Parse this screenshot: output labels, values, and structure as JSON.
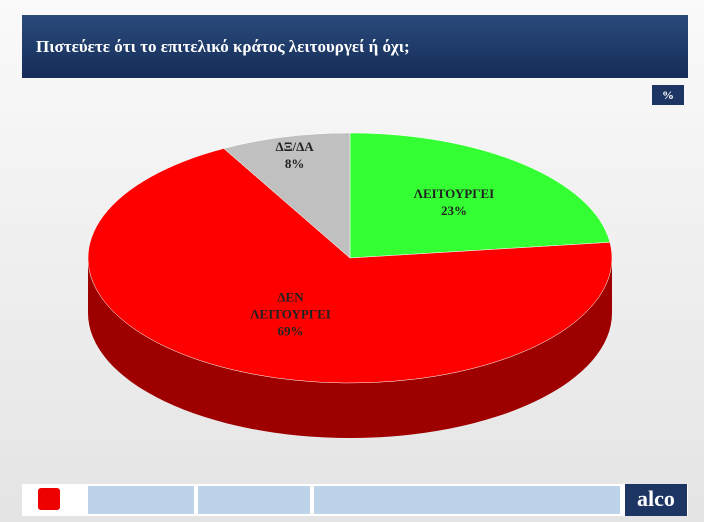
{
  "chart_data": {
    "type": "pie",
    "title": "Πιστεύετε ότι το επιτελικό κράτος λειτουργεί ή όχι;",
    "unit": "%",
    "categories": [
      "ΛΕΙΤΟΥΡΓΕΙ",
      "ΔΕΝ ΛΕΙΤΟΥΡΓΕΙ",
      "ΔΞ/ΔΑ"
    ],
    "values": [
      23,
      69,
      8
    ],
    "value_labels": [
      "23%",
      "69%",
      "8%"
    ],
    "colors": [
      "#33ff33",
      "#ff0000",
      "#c0c0c0"
    ]
  },
  "footer": {
    "brand": "alco"
  }
}
